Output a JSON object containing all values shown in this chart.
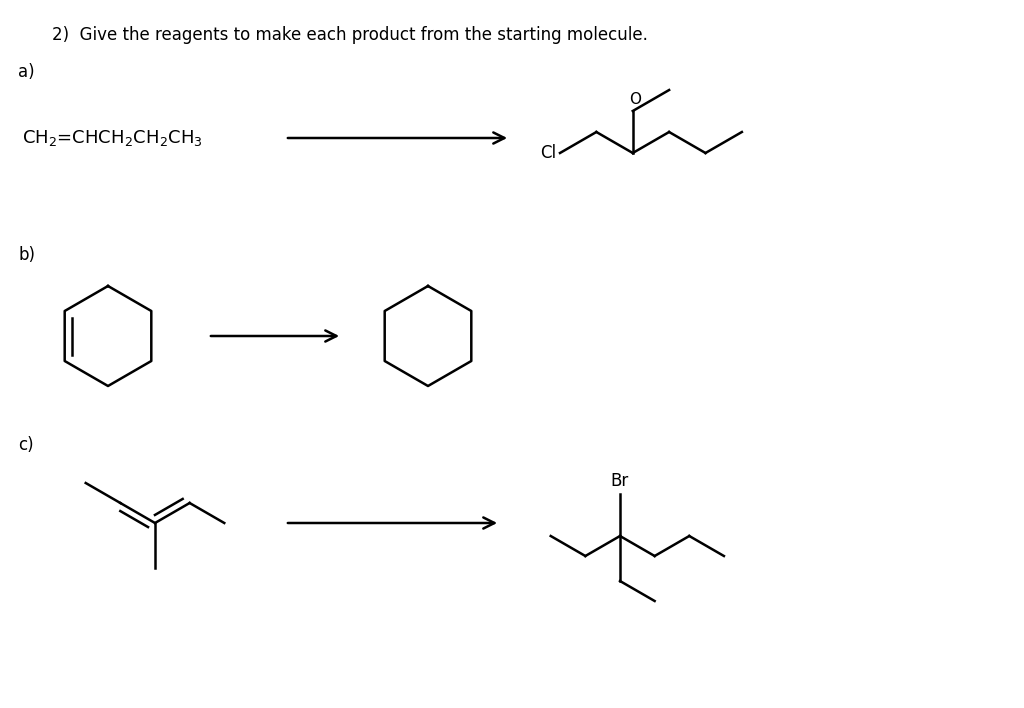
{
  "title": "2)  Give the reagents to make each product from the starting molecule.",
  "bg_color": "#ffffff",
  "text_color": "#000000",
  "label_a": "a)",
  "label_b": "b)",
  "label_c": "c)",
  "figsize": [
    10.24,
    7.08
  ],
  "dpi": 100
}
